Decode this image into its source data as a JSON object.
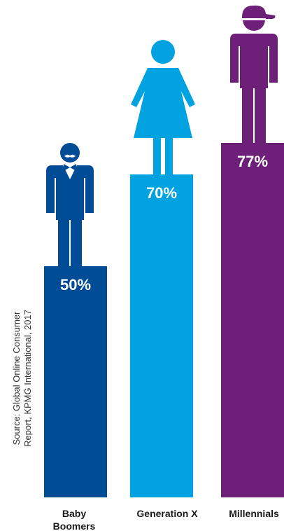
{
  "source": {
    "line1": "Source: Global Online Consumer",
    "line2": "Report, KPMG International, 2017"
  },
  "colors": {
    "baby_boomers": "#004C97",
    "generation_x": "#00A3E0",
    "millennials": "#6D2077",
    "value_text": "#ffffff",
    "label_text": "#1a1a1a"
  },
  "chart_data": {
    "type": "bar",
    "categories": [
      "Baby Boomers",
      "Generation X",
      "Millennials"
    ],
    "category_label_lines": [
      [
        "Baby",
        "Boomers"
      ],
      [
        "Generation X"
      ],
      [
        "Millennials"
      ]
    ],
    "values": [
      50,
      70,
      77
    ],
    "value_labels": [
      "50%",
      "70%",
      "77%"
    ],
    "icons": [
      "man-with-mustache-bowtie-icon",
      "woman-in-dress-icon",
      "person-with-cap-icon"
    ],
    "ylim": [
      0,
      100
    ],
    "title": "",
    "xlabel": "",
    "ylabel": "",
    "grid": false,
    "legend": "none"
  }
}
